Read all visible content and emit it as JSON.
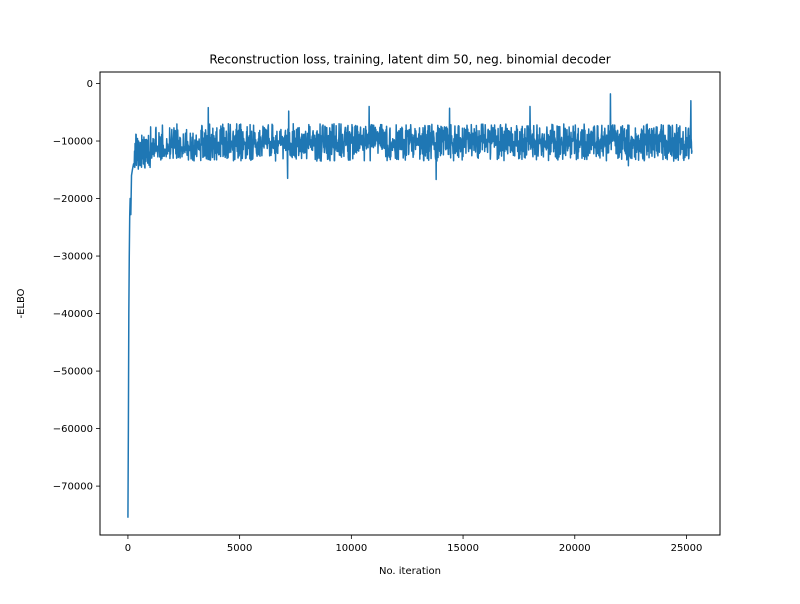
{
  "chart_data": {
    "type": "line",
    "title": "Reconstruction loss, training, latent dim 50, neg. binomial decoder",
    "xlabel": "No. iteration",
    "ylabel": "-ELBO",
    "xlim": [
      -1250,
      26500
    ],
    "ylim": [
      -78500,
      2000
    ],
    "xticks": [
      0,
      5000,
      10000,
      15000,
      20000,
      25000
    ],
    "yticks": [
      0,
      -10000,
      -20000,
      -30000,
      -40000,
      -50000,
      -60000,
      -70000
    ],
    "xtick_labels": [
      "0",
      "5000",
      "10000",
      "15000",
      "20000",
      "25000"
    ],
    "ytick_labels": [
      "0",
      "−10000",
      "−20000",
      "−30000",
      "−40000",
      "−50000",
      "−60000",
      "−70000"
    ],
    "grid": false,
    "series": [
      {
        "color": "#1f77b4",
        "x_end": 25250,
        "warmup": [
          [
            0,
            -75500
          ],
          [
            20,
            -60000
          ],
          [
            40,
            -40000
          ],
          [
            60,
            -30000
          ],
          [
            80,
            -23000
          ],
          [
            100,
            -20000
          ],
          [
            130,
            -18000
          ],
          [
            160,
            -16000
          ],
          [
            200,
            -15000
          ],
          [
            250,
            -14000
          ],
          [
            350,
            -13500
          ],
          [
            500,
            -13000
          ],
          [
            700,
            -12500
          ],
          [
            1000,
            -12000
          ],
          [
            1500,
            -11500
          ],
          [
            2000,
            -11200
          ],
          [
            3000,
            -10800
          ],
          [
            5000,
            -10500
          ],
          [
            10000,
            -10200
          ],
          [
            25250,
            -10000
          ]
        ],
        "band": {
          "early": {
            "x_max": 1000,
            "upper": -8500,
            "lower": -15000
          },
          "steady": {
            "upper": -7000,
            "lower": -13500
          }
        },
        "spikes_up": [
          [
            3600,
            -4200
          ],
          [
            7200,
            -4800
          ],
          [
            10800,
            -4000
          ],
          [
            14400,
            -4300
          ],
          [
            18000,
            -4000
          ],
          [
            21600,
            -1800
          ],
          [
            25200,
            -3000
          ]
        ],
        "spikes_down": [
          [
            120,
            -22800
          ],
          [
            7150,
            -16500
          ],
          [
            13800,
            -16700
          ],
          [
            22400,
            -14300
          ]
        ]
      }
    ]
  }
}
